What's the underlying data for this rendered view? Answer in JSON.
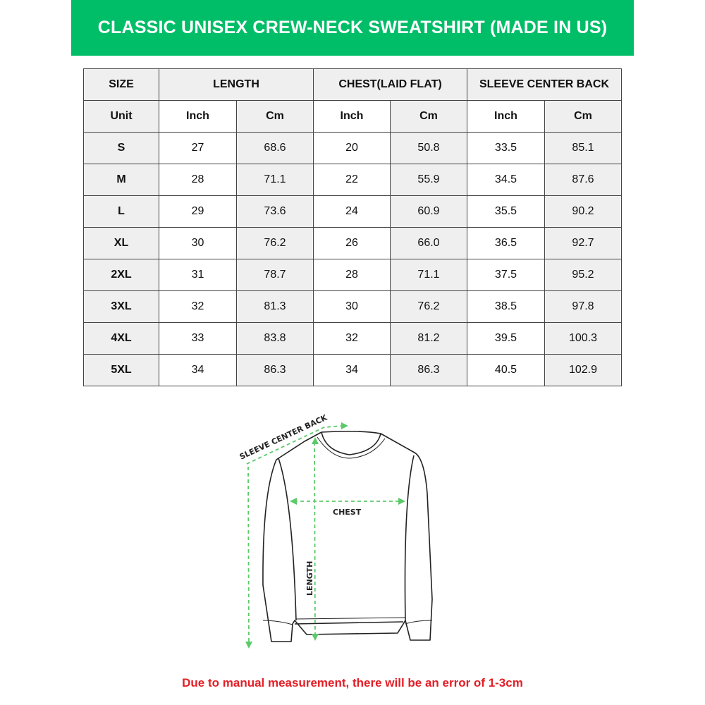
{
  "title": "CLASSIC UNISEX CREW-NECK SWEATSHIRT (MADE IN US)",
  "table": {
    "group_headers": [
      "SIZE",
      "LENGTH",
      "CHEST(LAID FLAT)",
      "SLEEVE CENTER BACK"
    ],
    "unit_row": [
      "Unit",
      "Inch",
      "Cm",
      "Inch",
      "Cm",
      "Inch",
      "Cm"
    ],
    "rows": [
      [
        "S",
        "27",
        "68.6",
        "20",
        "50.8",
        "33.5",
        "85.1"
      ],
      [
        "M",
        "28",
        "71.1",
        "22",
        "55.9",
        "34.5",
        "87.6"
      ],
      [
        "L",
        "29",
        "73.6",
        "24",
        "60.9",
        "35.5",
        "90.2"
      ],
      [
        "XL",
        "30",
        "76.2",
        "26",
        "66.0",
        "36.5",
        "92.7"
      ],
      [
        "2XL",
        "31",
        "78.7",
        "28",
        "71.1",
        "37.5",
        "95.2"
      ],
      [
        "3XL",
        "32",
        "81.3",
        "30",
        "76.2",
        "38.5",
        "97.8"
      ],
      [
        "4XL",
        "33",
        "83.8",
        "32",
        "81.2",
        "39.5",
        "100.3"
      ],
      [
        "5XL",
        "34",
        "86.3",
        "34",
        "86.3",
        "40.5",
        "102.9"
      ]
    ]
  },
  "diagram": {
    "sleeve_label": "SLEEVE CENTER BACK",
    "chest_label": "CHEST",
    "length_label": "LENGTH"
  },
  "colors": {
    "brand_green": "#00bd68",
    "arrow_green": "#5cc96a",
    "note_red": "#e41e26"
  },
  "note": "Due to manual measurement, there will be an error of 1-3cm"
}
